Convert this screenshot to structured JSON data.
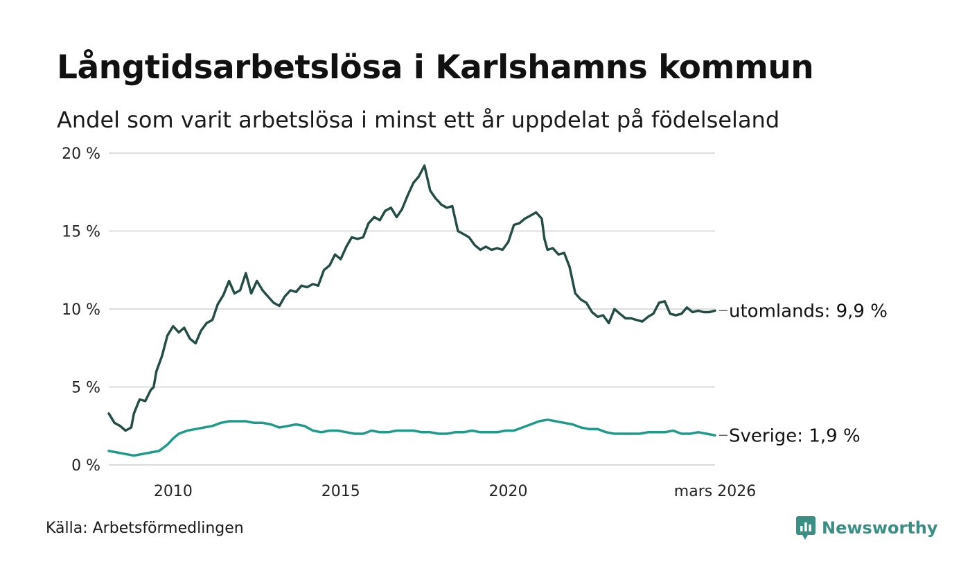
{
  "title": "Långtidsarbetslösa i Karlshamns kommun",
  "subtitle": "Andel som varit arbetslösa i minst ett år uppdelat på födelseland",
  "source": "Källa: Arbetsförmedlingen",
  "brand": "Newsworthy",
  "colors": {
    "utomlands": "#234d45",
    "sverige": "#1f9a8a",
    "grid": "#dddddd",
    "brand": "#3a8f84"
  },
  "chart_data": {
    "type": "line",
    "title": "Långtidsarbetslösa i Karlshamns kommun",
    "ylim": [
      0,
      20
    ],
    "y_ticks": [
      {
        "value": 0,
        "label": "0 %"
      },
      {
        "value": 5,
        "label": "5 %"
      },
      {
        "value": 10,
        "label": "10 %"
      },
      {
        "value": 15,
        "label": "15 %"
      },
      {
        "value": 20,
        "label": "20 %"
      }
    ],
    "xlim": [
      2008.08,
      2026.17
    ],
    "x_ticks": [
      {
        "value": 2010,
        "label": "2010"
      },
      {
        "value": 2015,
        "label": "2015"
      },
      {
        "value": 2020,
        "label": "2020"
      },
      {
        "value": 2026.17,
        "label": "mars 2026"
      }
    ],
    "series": [
      {
        "name": "utomlands",
        "end_label": "utomlands: 9,9 %",
        "x": [
          2008.08,
          2008.25,
          2008.42,
          2008.58,
          2008.75,
          2008.83,
          2009.0,
          2009.17,
          2009.33,
          2009.42,
          2009.5,
          2009.67,
          2009.83,
          2010.0,
          2010.17,
          2010.33,
          2010.5,
          2010.67,
          2010.83,
          2011.0,
          2011.17,
          2011.33,
          2011.5,
          2011.67,
          2011.83,
          2012.0,
          2012.17,
          2012.33,
          2012.5,
          2012.67,
          2012.83,
          2013.0,
          2013.17,
          2013.33,
          2013.5,
          2013.67,
          2013.83,
          2014.0,
          2014.17,
          2014.33,
          2014.5,
          2014.67,
          2014.83,
          2015.0,
          2015.17,
          2015.33,
          2015.5,
          2015.67,
          2015.83,
          2016.0,
          2016.17,
          2016.33,
          2016.5,
          2016.67,
          2016.83,
          2017.0,
          2017.17,
          2017.33,
          2017.5,
          2017.67,
          2017.83,
          2017.92,
          2018.0,
          2018.17,
          2018.33,
          2018.5,
          2018.67,
          2018.83,
          2019.0,
          2019.17,
          2019.33,
          2019.5,
          2019.67,
          2019.83,
          2020.0,
          2020.17,
          2020.33,
          2020.5,
          2020.67,
          2020.83,
          2021.0,
          2021.08,
          2021.17,
          2021.33,
          2021.5,
          2021.67,
          2021.83,
          2022.0,
          2022.17,
          2022.33,
          2022.5,
          2022.67,
          2022.83,
          2023.0,
          2023.17,
          2023.33,
          2023.5,
          2023.67,
          2023.83,
          2024.0,
          2024.17,
          2024.33,
          2024.5,
          2024.67,
          2024.83,
          2025.0,
          2025.17,
          2025.33,
          2025.5,
          2025.67,
          2025.83,
          2026.0,
          2026.17
        ],
        "values": [
          3.3,
          2.7,
          2.5,
          2.2,
          2.4,
          3.3,
          4.2,
          4.1,
          4.8,
          5.0,
          6.0,
          7.0,
          8.3,
          8.9,
          8.5,
          8.8,
          8.1,
          7.8,
          8.6,
          9.1,
          9.3,
          10.3,
          10.9,
          11.8,
          11.0,
          11.2,
          12.3,
          11.0,
          11.8,
          11.2,
          10.8,
          10.4,
          10.2,
          10.8,
          11.2,
          11.1,
          11.5,
          11.4,
          11.6,
          11.5,
          12.5,
          12.8,
          13.5,
          13.2,
          14.0,
          14.6,
          14.5,
          14.6,
          15.5,
          15.9,
          15.7,
          16.3,
          16.5,
          15.9,
          16.4,
          17.3,
          18.1,
          18.5,
          19.2,
          17.6,
          17.1,
          16.9,
          16.7,
          16.5,
          16.6,
          15.0,
          14.8,
          14.6,
          14.1,
          13.8,
          14.0,
          13.8,
          13.9,
          13.8,
          14.3,
          15.4,
          15.5,
          15.8,
          16.0,
          16.2,
          15.8,
          14.5,
          13.8,
          13.9,
          13.5,
          13.6,
          12.7,
          11.0,
          10.6,
          10.4,
          9.8,
          9.5,
          9.6,
          9.1,
          10.0,
          9.7,
          9.4,
          9.4,
          9.3,
          9.2,
          9.5,
          9.7,
          10.4,
          10.5,
          9.7,
          9.6,
          9.7,
          10.1,
          9.8,
          9.9,
          9.8,
          9.8,
          9.9
        ]
      },
      {
        "name": "Sverige",
        "end_label": "Sverige: 1,9 %",
        "x": [
          2008.08,
          2008.33,
          2008.58,
          2008.83,
          2009.08,
          2009.33,
          2009.58,
          2009.83,
          2010.0,
          2010.17,
          2010.42,
          2010.67,
          2010.92,
          2011.17,
          2011.42,
          2011.67,
          2011.92,
          2012.17,
          2012.42,
          2012.67,
          2012.92,
          2013.17,
          2013.42,
          2013.67,
          2013.92,
          2014.17,
          2014.42,
          2014.67,
          2014.92,
          2015.17,
          2015.42,
          2015.67,
          2015.92,
          2016.17,
          2016.42,
          2016.67,
          2016.92,
          2017.17,
          2017.42,
          2017.67,
          2017.92,
          2018.17,
          2018.42,
          2018.67,
          2018.92,
          2019.17,
          2019.42,
          2019.67,
          2019.92,
          2020.17,
          2020.42,
          2020.67,
          2020.92,
          2021.17,
          2021.42,
          2021.67,
          2021.92,
          2022.17,
          2022.42,
          2022.67,
          2022.92,
          2023.17,
          2023.42,
          2023.67,
          2023.92,
          2024.17,
          2024.42,
          2024.67,
          2024.92,
          2025.17,
          2025.42,
          2025.67,
          2025.92,
          2026.17
        ],
        "values": [
          0.9,
          0.8,
          0.7,
          0.6,
          0.7,
          0.8,
          0.9,
          1.3,
          1.7,
          2.0,
          2.2,
          2.3,
          2.4,
          2.5,
          2.7,
          2.8,
          2.8,
          2.8,
          2.7,
          2.7,
          2.6,
          2.4,
          2.5,
          2.6,
          2.5,
          2.2,
          2.1,
          2.2,
          2.2,
          2.1,
          2.0,
          2.0,
          2.2,
          2.1,
          2.1,
          2.2,
          2.2,
          2.2,
          2.1,
          2.1,
          2.0,
          2.0,
          2.1,
          2.1,
          2.2,
          2.1,
          2.1,
          2.1,
          2.2,
          2.2,
          2.4,
          2.6,
          2.8,
          2.9,
          2.8,
          2.7,
          2.6,
          2.4,
          2.3,
          2.3,
          2.1,
          2.0,
          2.0,
          2.0,
          2.0,
          2.1,
          2.1,
          2.1,
          2.2,
          2.0,
          2.0,
          2.1,
          2.0,
          1.9
        ]
      }
    ]
  }
}
